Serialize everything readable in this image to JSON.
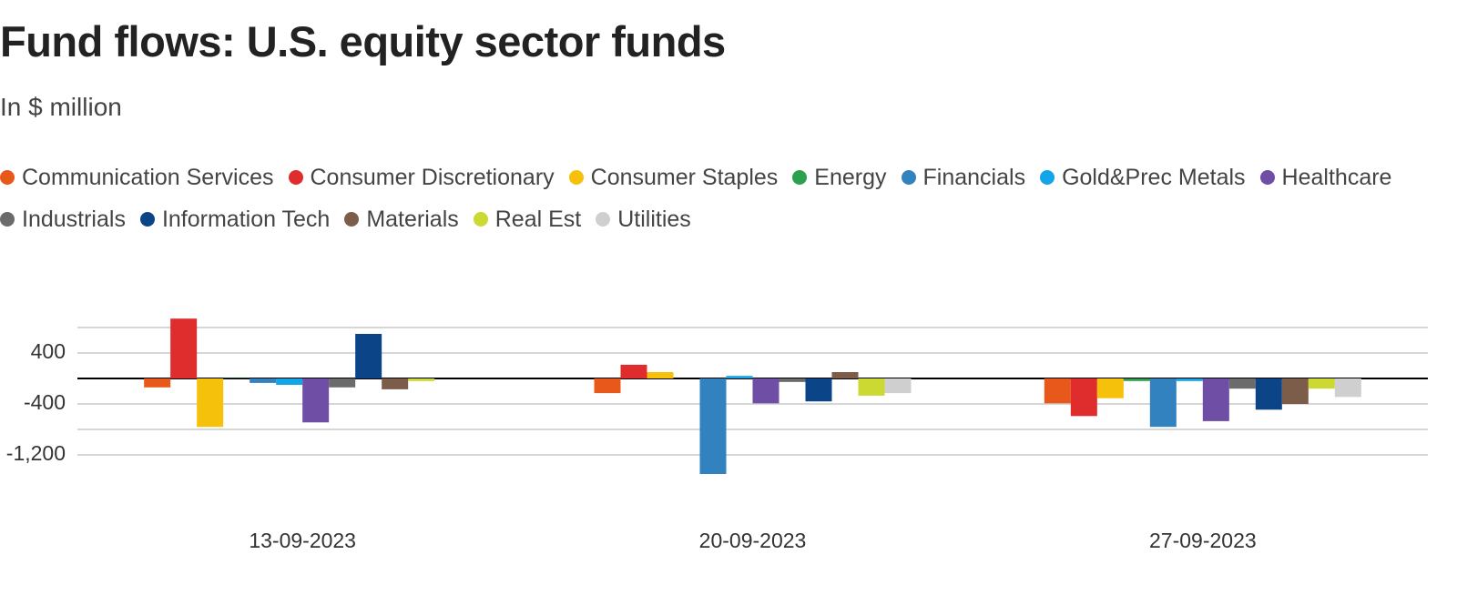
{
  "chart_data": {
    "type": "bar",
    "title": "Fund flows: U.S. equity sector funds",
    "subtitle": "In $ million",
    "categories": [
      "13-09-2023",
      "20-09-2023",
      "27-09-2023"
    ],
    "series": [
      {
        "name": "Communication Services",
        "color": "#e8581b",
        "values": [
          -140,
          -230,
          -390
        ]
      },
      {
        "name": "Consumer Discretionary",
        "color": "#df2c2c",
        "values": [
          940,
          215,
          -590
        ]
      },
      {
        "name": "Consumer Staples",
        "color": "#f5c10a",
        "values": [
          -760,
          100,
          -310
        ]
      },
      {
        "name": "Energy",
        "color": "#2ba14e",
        "values": [
          5,
          0,
          -40
        ]
      },
      {
        "name": "Financials",
        "color": "#3382c0",
        "values": [
          -70,
          -1500,
          -760
        ]
      },
      {
        "name": "Gold&Prec Metals",
        "color": "#13a5e8",
        "values": [
          -100,
          40,
          -40
        ]
      },
      {
        "name": "Healthcare",
        "color": "#6f4ea6",
        "values": [
          -690,
          -390,
          -670
        ]
      },
      {
        "name": "Industrials",
        "color": "#6b6b6b",
        "values": [
          -140,
          -55,
          -160
        ]
      },
      {
        "name": "Information Tech",
        "color": "#0b4588",
        "values": [
          700,
          -360,
          -490
        ]
      },
      {
        "name": "Materials",
        "color": "#7c5d4a",
        "values": [
          -170,
          100,
          -400
        ]
      },
      {
        "name": "Real Est",
        "color": "#cbd932",
        "values": [
          -40,
          -270,
          -160
        ]
      },
      {
        "name": "Utilities",
        "color": "#cfcfcf",
        "values": [
          0,
          -230,
          -290
        ]
      }
    ],
    "ylim": [
      -1600,
      1000
    ],
    "yticks": [
      {
        "value": 800,
        "label": null
      },
      400,
      {
        "value": 0,
        "label": null
      },
      -400,
      {
        "value": -800,
        "label": null
      },
      {
        "value": -1200,
        "label": "-1,200"
      }
    ],
    "grid": true
  }
}
